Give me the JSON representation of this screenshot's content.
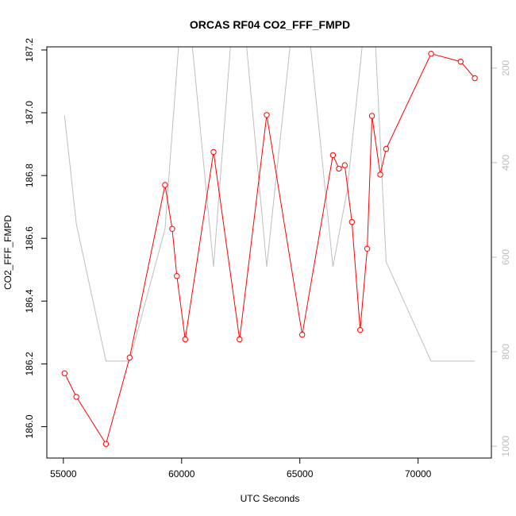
{
  "chart_data": {
    "type": "line",
    "title": "ORCAS RF04 CO2_FFF_FMPD",
    "xlabel": "UTC Seconds",
    "ylabel": "CO2_FFF_FMPD",
    "xlim": [
      54300,
      73100
    ],
    "ylim": [
      185.9,
      187.21
    ],
    "y2lim": [
      1025,
      155
    ],
    "y2_reversed": true,
    "x_ticks": [
      55000,
      60000,
      65000,
      70000
    ],
    "x_tick_labels": [
      "55000",
      "60000",
      "65000",
      "70000"
    ],
    "y_ticks": [
      186.0,
      186.2,
      186.4,
      186.6,
      186.8,
      187.0,
      187.2
    ],
    "y_tick_labels": [
      "186.0",
      "186.2",
      "186.4",
      "186.6",
      "186.8",
      "187.0",
      "187.2"
    ],
    "y2_ticks": [
      200,
      400,
      600,
      800,
      1000
    ],
    "y2_tick_labels": [
      "200",
      "400",
      "600",
      "800",
      "1000"
    ],
    "grid": false,
    "legend": "none",
    "series": [
      {
        "role": "primary",
        "color": "#ff0000",
        "markers": "open-circle",
        "x": [
          55050,
          55550,
          56800,
          57800,
          59300,
          59600,
          59800,
          60150,
          61350,
          62450,
          63600,
          65100,
          66400,
          66650,
          66900,
          67200,
          67550,
          67850,
          68050,
          68400,
          68650,
          70550,
          71800,
          72400
        ],
        "y": [
          186.17,
          186.095,
          185.945,
          186.22,
          186.77,
          186.63,
          186.48,
          186.278,
          186.875,
          186.278,
          186.993,
          186.293,
          186.865,
          186.822,
          186.833,
          186.652,
          186.308,
          186.567,
          186.99,
          186.803,
          186.885,
          187.188,
          187.163,
          187.11
        ]
      },
      {
        "role": "secondary",
        "color": "#bebebe",
        "markers": "none",
        "x": [
          55050,
          55550,
          56800,
          57800,
          59300,
          59950,
          60350,
          61350,
          62150,
          62650,
          63600,
          64700,
          65350,
          66400,
          67000,
          67750,
          68150,
          68650,
          70550,
          72400
        ],
        "y": [
          300,
          530,
          820,
          820,
          540,
          100,
          100,
          620,
          100,
          100,
          620,
          100,
          100,
          620,
          460,
          100,
          100,
          610,
          820,
          820
        ]
      }
    ]
  }
}
